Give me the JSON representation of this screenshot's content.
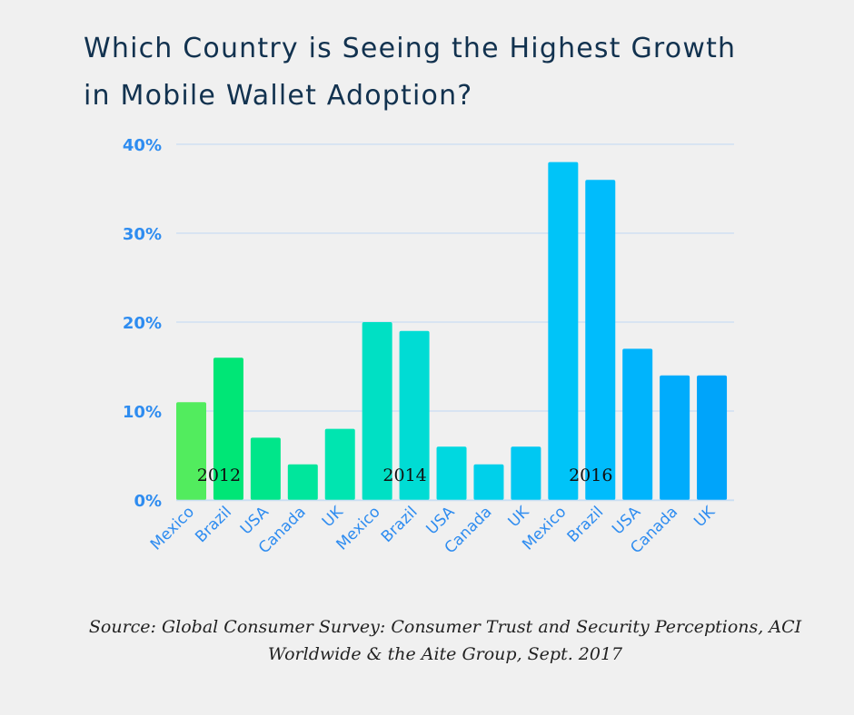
{
  "title_lines": [
    "Which Country is Seeing the Highest Growth",
    "in Mobile Wallet Adoption?"
  ],
  "source_lines": [
    "Source:  Global Consumer Survey: Consumer Trust and Security Perceptions, ACI",
    "Worldwide & the Aite Group, Sept. 2017"
  ],
  "chart_data": {
    "type": "bar",
    "title": "Which Country is Seeing the Highest Growth in Mobile Wallet Adoption?",
    "xlabel": "",
    "ylabel": "",
    "ylim": [
      0,
      40
    ],
    "yticks": [
      "0%",
      "10%",
      "20%",
      "30%",
      "40%"
    ],
    "ytick_values": [
      0,
      10,
      20,
      30,
      40
    ],
    "grid": true,
    "categories": [
      "Mexico",
      "Brazil",
      "USA",
      "Canada",
      "UK",
      "Mexico",
      "Brazil",
      "USA",
      "Canada",
      "UK",
      "Mexico",
      "Brazil",
      "USA",
      "Canada",
      "UK"
    ],
    "groups": [
      {
        "year": "2012",
        "countries": [
          "Mexico",
          "Brazil",
          "USA",
          "Canada",
          "UK"
        ],
        "values": [
          11,
          16,
          7,
          4,
          8
        ]
      },
      {
        "year": "2014",
        "countries": [
          "Mexico",
          "Brazil",
          "USA",
          "Canada",
          "UK"
        ],
        "values": [
          20,
          19,
          6,
          4,
          6
        ]
      },
      {
        "year": "2016",
        "countries": [
          "Mexico",
          "Brazil",
          "USA",
          "Canada",
          "UK"
        ],
        "values": [
          38,
          36,
          17,
          14,
          14
        ]
      }
    ],
    "values": [
      11,
      16,
      7,
      4,
      8,
      20,
      19,
      6,
      4,
      6,
      38,
      36,
      17,
      14,
      14
    ],
    "bar_colors": [
      "#52ec5e",
      "#00e676",
      "#00e68a",
      "#00e69c",
      "#00e5b0",
      "#00e0c4",
      "#00dcd4",
      "#00d8e0",
      "#00d0ea",
      "#00c8f2",
      "#00c4f8",
      "#00bcfc",
      "#00b4fc",
      "#00acfc",
      "#00a4fa"
    ],
    "tick_color": "#2e8cf0",
    "grid_color": "#c9ddf2",
    "year_labels": [
      "2012",
      "2014",
      "2016"
    ]
  }
}
